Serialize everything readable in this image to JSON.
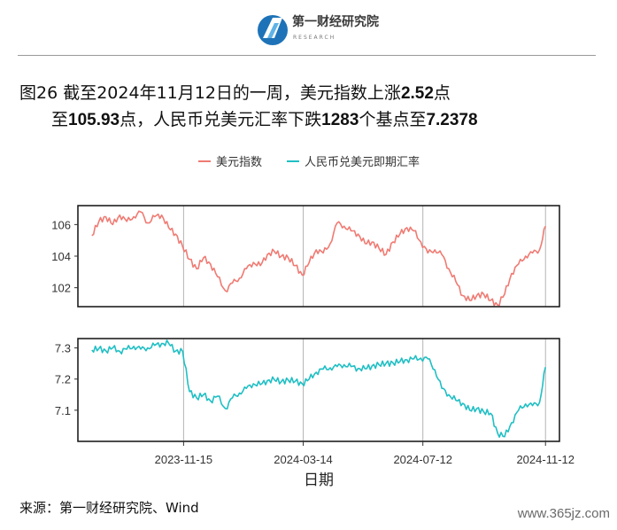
{
  "brand": {
    "name": "第一财经研究院",
    "sub": "RESEARCH"
  },
  "figure": {
    "title_line1_prefix": "图26 截至",
    "title_date": "2024年11月12日的一周，美元指数上涨",
    "title_up": "2.52",
    "title_line1_suffix": "点",
    "title_line2_prefix": "至",
    "title_to": "105.93",
    "title_line2_mid": "点，人民币兑美元汇率下跌",
    "title_bp": "1283",
    "title_line2_mid2": "个基点至",
    "title_rate": "7.2378"
  },
  "source": "来源：第一财经研究院、Wind",
  "watermark": "www.365jz.com",
  "chart_data": {
    "type": "line",
    "xlabel": "日期",
    "x_ticks": [
      "2023-11-15",
      "2024-03-14",
      "2024-07-12",
      "2024-11-12"
    ],
    "legend": {
      "placement": "top",
      "entries": [
        "美元指数",
        "人民币兑美元即期汇率"
      ]
    },
    "colors": {
      "dxy": "#ef7b73",
      "cny": "#1fbfc4"
    },
    "grid": "vertical lines at x ticks",
    "panels": [
      {
        "series": "美元指数",
        "ylim": [
          100.8,
          107.2
        ],
        "y_ticks": [
          "102",
          "104",
          "106"
        ],
        "points": [
          [
            "2023-08-15",
            105.3
          ],
          [
            "2023-08-22",
            106.2
          ],
          [
            "2023-08-29",
            106.5
          ],
          [
            "2023-09-05",
            106.0
          ],
          [
            "2023-09-12",
            106.6
          ],
          [
            "2023-09-19",
            106.2
          ],
          [
            "2023-09-26",
            106.5
          ],
          [
            "2023-10-03",
            106.8
          ],
          [
            "2023-10-10",
            106.1
          ],
          [
            "2023-10-17",
            106.5
          ],
          [
            "2023-10-24",
            106.6
          ],
          [
            "2023-10-31",
            105.8
          ],
          [
            "2023-11-07",
            105.4
          ],
          [
            "2023-11-14",
            104.6
          ],
          [
            "2023-11-21",
            103.8
          ],
          [
            "2023-11-28",
            103.2
          ],
          [
            "2023-12-05",
            103.9
          ],
          [
            "2023-12-12",
            103.5
          ],
          [
            "2023-12-19",
            102.7
          ],
          [
            "2023-12-27",
            101.8
          ],
          [
            "2024-01-03",
            102.3
          ],
          [
            "2024-01-10",
            102.6
          ],
          [
            "2024-01-17",
            103.2
          ],
          [
            "2024-01-24",
            103.6
          ],
          [
            "2024-01-31",
            103.4
          ],
          [
            "2024-02-07",
            104.1
          ],
          [
            "2024-02-14",
            104.3
          ],
          [
            "2024-02-21",
            104.0
          ],
          [
            "2024-02-28",
            103.9
          ],
          [
            "2024-03-06",
            103.4
          ],
          [
            "2024-03-13",
            102.8
          ],
          [
            "2024-03-20",
            103.6
          ],
          [
            "2024-03-27",
            104.4
          ],
          [
            "2024-04-03",
            104.2
          ],
          [
            "2024-04-10",
            104.8
          ],
          [
            "2024-04-17",
            106.1
          ],
          [
            "2024-04-24",
            105.9
          ],
          [
            "2024-05-01",
            105.6
          ],
          [
            "2024-05-08",
            105.4
          ],
          [
            "2024-05-15",
            104.8
          ],
          [
            "2024-05-22",
            104.9
          ],
          [
            "2024-05-29",
            104.5
          ],
          [
            "2024-06-05",
            104.1
          ],
          [
            "2024-06-12",
            104.9
          ],
          [
            "2024-06-19",
            105.4
          ],
          [
            "2024-06-26",
            105.8
          ],
          [
            "2024-07-03",
            105.6
          ],
          [
            "2024-07-10",
            104.9
          ],
          [
            "2024-07-17",
            104.2
          ],
          [
            "2024-07-24",
            104.4
          ],
          [
            "2024-07-31",
            104.1
          ],
          [
            "2024-08-07",
            103.2
          ],
          [
            "2024-08-14",
            102.4
          ],
          [
            "2024-08-21",
            101.5
          ],
          [
            "2024-08-28",
            101.2
          ],
          [
            "2024-09-04",
            101.5
          ],
          [
            "2024-09-11",
            101.6
          ],
          [
            "2024-09-18",
            101.2
          ],
          [
            "2024-09-25",
            100.9
          ],
          [
            "2024-10-02",
            101.6
          ],
          [
            "2024-10-09",
            102.9
          ],
          [
            "2024-10-16",
            103.5
          ],
          [
            "2024-10-23",
            104.0
          ],
          [
            "2024-10-30",
            104.2
          ],
          [
            "2024-11-06",
            104.4
          ],
          [
            "2024-11-12",
            105.9
          ]
        ]
      },
      {
        "series": "人民币兑美元即期汇率",
        "ylim": [
          7.0,
          7.33
        ],
        "y_ticks": [
          "7.1",
          "7.2",
          "7.3"
        ],
        "points": [
          [
            "2023-08-15",
            7.293
          ],
          [
            "2023-08-22",
            7.298
          ],
          [
            "2023-08-29",
            7.291
          ],
          [
            "2023-09-05",
            7.3
          ],
          [
            "2023-09-12",
            7.289
          ],
          [
            "2023-09-19",
            7.296
          ],
          [
            "2023-09-26",
            7.305
          ],
          [
            "2023-10-03",
            7.296
          ],
          [
            "2023-10-10",
            7.3
          ],
          [
            "2023-10-17",
            7.308
          ],
          [
            "2023-10-24",
            7.314
          ],
          [
            "2023-10-31",
            7.315
          ],
          [
            "2023-11-07",
            7.29
          ],
          [
            "2023-11-14",
            7.289
          ],
          [
            "2023-11-21",
            7.16
          ],
          [
            "2023-11-28",
            7.14
          ],
          [
            "2023-12-05",
            7.15
          ],
          [
            "2023-12-12",
            7.13
          ],
          [
            "2023-12-19",
            7.145
          ],
          [
            "2023-12-27",
            7.105
          ],
          [
            "2024-01-03",
            7.14
          ],
          [
            "2024-01-10",
            7.155
          ],
          [
            "2024-01-17",
            7.17
          ],
          [
            "2024-01-24",
            7.185
          ],
          [
            "2024-01-31",
            7.182
          ],
          [
            "2024-02-07",
            7.195
          ],
          [
            "2024-02-14",
            7.198
          ],
          [
            "2024-02-21",
            7.192
          ],
          [
            "2024-02-28",
            7.197
          ],
          [
            "2024-03-06",
            7.193
          ],
          [
            "2024-03-13",
            7.185
          ],
          [
            "2024-03-20",
            7.2
          ],
          [
            "2024-03-27",
            7.222
          ],
          [
            "2024-04-03",
            7.232
          ],
          [
            "2024-04-10",
            7.236
          ],
          [
            "2024-04-17",
            7.24
          ],
          [
            "2024-04-24",
            7.246
          ],
          [
            "2024-05-01",
            7.24
          ],
          [
            "2024-05-08",
            7.234
          ],
          [
            "2024-05-15",
            7.233
          ],
          [
            "2024-05-22",
            7.242
          ],
          [
            "2024-05-29",
            7.246
          ],
          [
            "2024-06-05",
            7.25
          ],
          [
            "2024-06-12",
            7.252
          ],
          [
            "2024-06-19",
            7.256
          ],
          [
            "2024-06-26",
            7.262
          ],
          [
            "2024-07-03",
            7.265
          ],
          [
            "2024-07-10",
            7.267
          ],
          [
            "2024-07-17",
            7.265
          ],
          [
            "2024-07-24",
            7.23
          ],
          [
            "2024-07-31",
            7.17
          ],
          [
            "2024-08-07",
            7.15
          ],
          [
            "2024-08-14",
            7.132
          ],
          [
            "2024-08-21",
            7.122
          ],
          [
            "2024-08-28",
            7.1
          ],
          [
            "2024-09-04",
            7.105
          ],
          [
            "2024-09-11",
            7.095
          ],
          [
            "2024-09-18",
            7.09
          ],
          [
            "2024-09-25",
            7.026
          ],
          [
            "2024-10-02",
            7.015
          ],
          [
            "2024-10-09",
            7.06
          ],
          [
            "2024-10-16",
            7.1
          ],
          [
            "2024-10-23",
            7.12
          ],
          [
            "2024-10-30",
            7.115
          ],
          [
            "2024-11-06",
            7.125
          ],
          [
            "2024-11-12",
            7.238
          ]
        ]
      }
    ]
  }
}
